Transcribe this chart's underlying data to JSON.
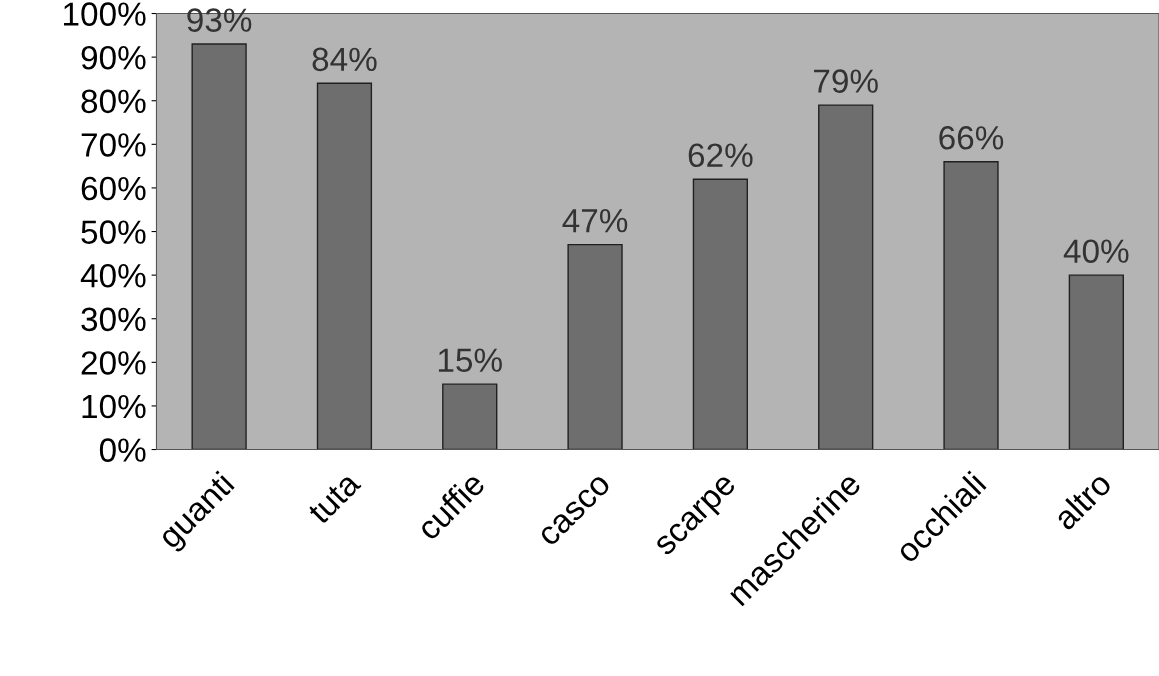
{
  "chart_data": {
    "type": "bar",
    "categories": [
      "guanti",
      "tuta",
      "cuffie",
      "casco",
      "scarpe",
      "mascherine",
      "occhiali",
      "altro"
    ],
    "values": [
      93,
      84,
      15,
      47,
      62,
      79,
      66,
      40
    ],
    "value_labels": [
      "93%",
      "84%",
      "15%",
      "47%",
      "62%",
      "79%",
      "66%",
      "40%"
    ],
    "color": "#6e6e6e",
    "ylim": [
      0,
      100
    ],
    "yticks": [
      {
        "value": 0,
        "label": "0%"
      },
      {
        "value": 10,
        "label": "10%"
      },
      {
        "value": 20,
        "label": "20%"
      },
      {
        "value": 30,
        "label": "30%"
      },
      {
        "value": 40,
        "label": "40%"
      },
      {
        "value": 50,
        "label": "50%"
      },
      {
        "value": 60,
        "label": "60%"
      },
      {
        "value": 70,
        "label": "70%"
      },
      {
        "value": 80,
        "label": "80%"
      },
      {
        "value": 90,
        "label": "90%"
      },
      {
        "value": 100,
        "label": "100%"
      }
    ],
    "grid": false
  }
}
